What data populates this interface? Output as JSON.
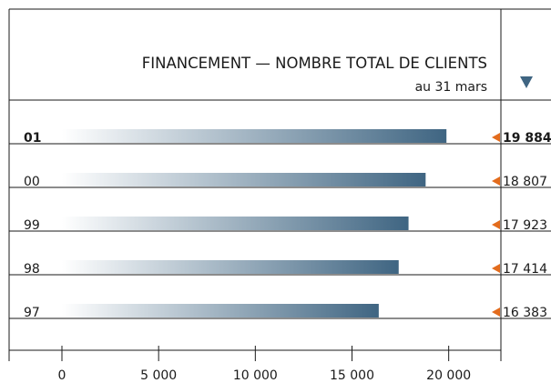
{
  "chart_data": {
    "type": "bar",
    "orientation": "horizontal",
    "title": "FINANCEMENT — NOMBRE TOTAL DE CLIENTS",
    "subtitle": "au 31 mars",
    "categories": [
      "01",
      "00",
      "99",
      "98",
      "97"
    ],
    "values": [
      19884,
      18807,
      17923,
      17414,
      16383
    ],
    "value_labels": [
      "19 884",
      "18 807",
      "17 923",
      "17 414",
      "16 383"
    ],
    "color": "#3f6582",
    "xlim": [
      0,
      22700
    ],
    "xticks": [
      0,
      {
        "value": 5000,
        "label": "5 000"
      },
      {
        "value": 10000,
        "label": "10 000"
      },
      {
        "value": 15000,
        "label": "15 000"
      },
      {
        "value": 20000,
        "label": "20 000"
      }
    ]
  }
}
